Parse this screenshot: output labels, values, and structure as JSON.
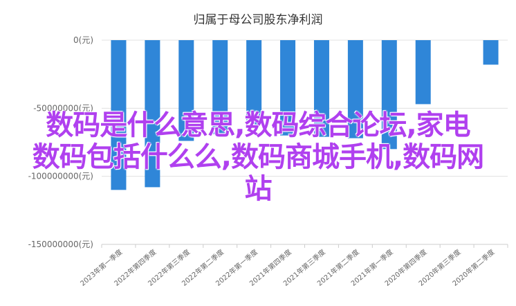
{
  "chart_data": {
    "type": "bar",
    "title": "归属于母公司股东净利润",
    "categories": [
      "2023年第一季度",
      "2022年第四季度",
      "2022年第三季度",
      "2022年第二季度",
      "2022年第一季度",
      "2021年第四季度",
      "2021年第三季度",
      "2021年第二季度",
      "2021年第一季度",
      "2020年第四季度",
      "2020年第三季度",
      "2020年第二季度"
    ],
    "values": [
      -110000000,
      -108000000,
      -74000000,
      -69000000,
      -62000000,
      -70000000,
      -71000000,
      -72000000,
      -80000000,
      -47000000,
      0,
      -18000000
    ],
    "ylim": [
      -150000000,
      0
    ],
    "yticks": [
      0,
      -50000000,
      -100000000,
      -150000000
    ],
    "ytick_labels": [
      "0(元)",
      "-50000000(元)",
      "-100000000(元)",
      "-150000000(元)"
    ],
    "xlabel": "",
    "ylabel": "",
    "grid": true,
    "bar_color": "#2f86d8"
  },
  "overlay_text": {
    "line1": "数码是什么意思,数码综合论坛,家电",
    "line2": "数码包括什么么,数码商城手机,数码网",
    "line3": "站"
  }
}
